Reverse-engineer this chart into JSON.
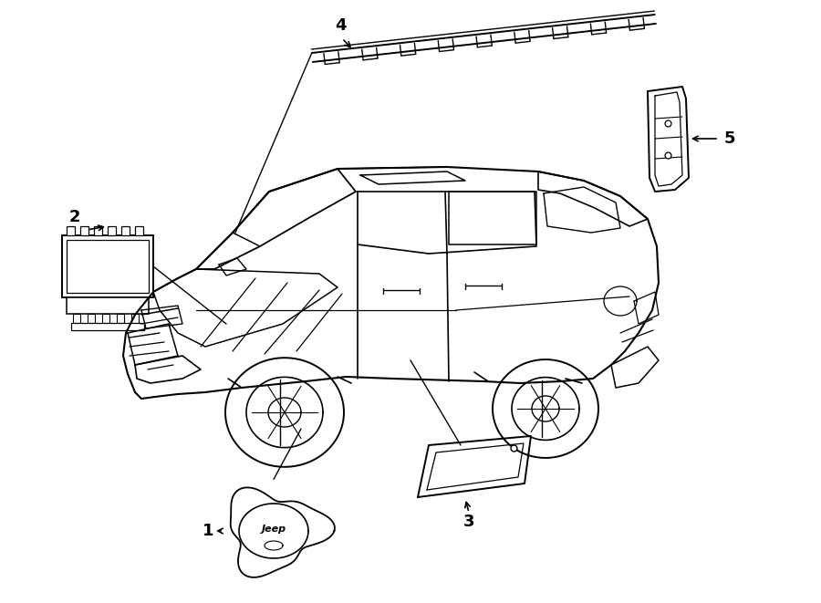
{
  "bg_color": "#ffffff",
  "lc": "#000000",
  "lw": 1.3,
  "fig_w": 9.0,
  "fig_h": 6.61,
  "dpi": 100
}
